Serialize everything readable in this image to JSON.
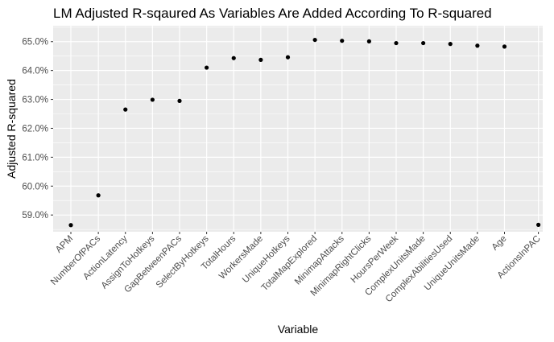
{
  "chart_data": {
    "type": "scatter",
    "title": "LM Adjusted R-sqaured As Variables Are Added According To R-squared",
    "xlabel": "Variable",
    "ylabel": "Adjusted R-squared",
    "categories": [
      "APM",
      "NumberOfPACs",
      "ActionLatency",
      "AssignToHotkeys",
      "GapBetweenPACs",
      "SelectByHotkeys",
      "TotalHours",
      "WorkersMade",
      "UniqueHotkeys",
      "TotalMapExplored",
      "MinimapAttacks",
      "MinimapRightClicks",
      "HoursPerWeek",
      "ComplexUnitsMade",
      "ComplexAbilitiesUsed",
      "UniqueUnitsMade",
      "Age",
      "ActionsInPAC"
    ],
    "values": [
      58.65,
      59.68,
      62.65,
      62.99,
      62.95,
      64.1,
      64.43,
      64.37,
      64.46,
      65.06,
      65.03,
      65.01,
      64.95,
      64.95,
      64.92,
      64.86,
      64.83,
      58.66
    ],
    "ylim": [
      58.42,
      65.55
    ],
    "y_ticks": [
      59.0,
      60.0,
      61.0,
      62.0,
      63.0,
      64.0,
      65.0
    ],
    "y_tick_labels": [
      "59.0%",
      "60.0%",
      "61.0%",
      "62.0%",
      "63.0%",
      "64.0%",
      "65.0%"
    ],
    "grid": true,
    "colors": {
      "panel": "#ebebeb",
      "grid": "#ffffff",
      "point": "#000000"
    }
  }
}
